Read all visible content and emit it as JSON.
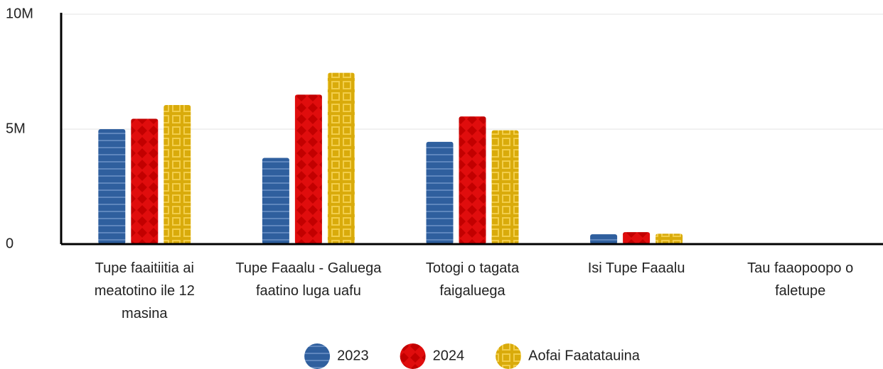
{
  "chart_data": {
    "type": "bar",
    "categories": [
      "Tupe faaitiitia ai meatotino ile 12 masina",
      "Tupe Faaalu - Galuega faatino luga uafu",
      "Totogi o tagata faigaluega",
      "Isi Tupe Faaalu",
      "Tau faaopoopo o faletupe"
    ],
    "series": [
      {
        "name": "2023",
        "color": "#2f5f9e",
        "values": [
          5000000,
          3750000,
          4450000,
          430000,
          0
        ]
      },
      {
        "name": "2024",
        "color": "#e00d0d",
        "values": [
          5450000,
          6500000,
          5550000,
          520000,
          0
        ]
      },
      {
        "name": "Aofai Faatatauina",
        "color": "#d9ab0b",
        "values": [
          6050000,
          7450000,
          4950000,
          450000,
          0
        ]
      }
    ],
    "ylim": [
      0,
      10000000
    ],
    "yticks": [
      0,
      {
        "value": 5000000,
        "label": "5M"
      },
      {
        "value": 10000000,
        "label": "10M"
      }
    ],
    "grid": true
  }
}
